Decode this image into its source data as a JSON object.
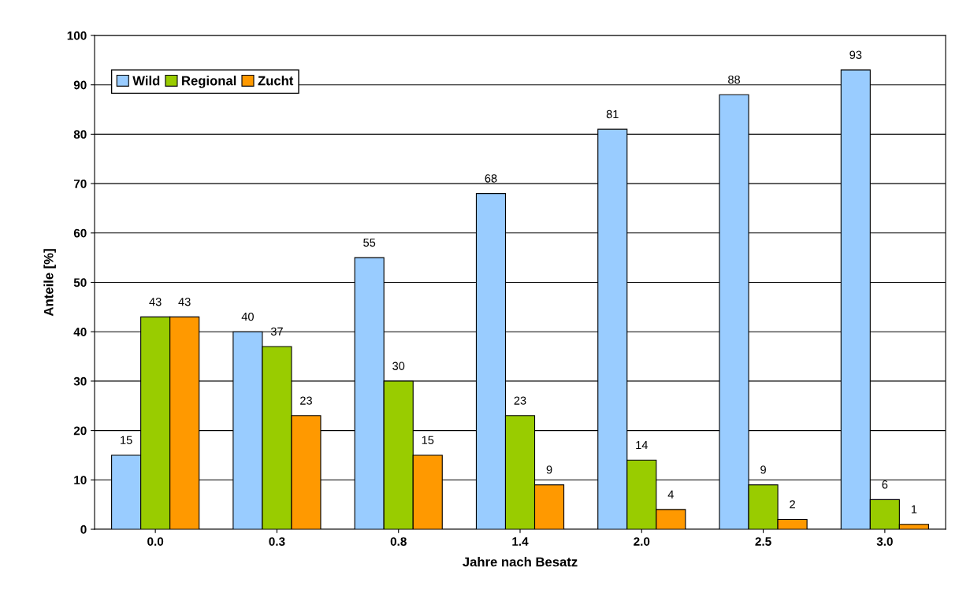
{
  "chart_data": {
    "type": "bar",
    "xlabel": "Jahre nach Besatz",
    "ylabel": "Anteile [%]",
    "categories": [
      "0.0",
      "0.3",
      "0.8",
      "1.4",
      "2.0",
      "2.5",
      "3.0"
    ],
    "series": [
      {
        "name": "Wild",
        "color": "#99ccff",
        "values": [
          15,
          40,
          55,
          68,
          81,
          88,
          93
        ]
      },
      {
        "name": "Regional",
        "color": "#99cc00",
        "values": [
          43,
          37,
          30,
          23,
          14,
          9,
          6
        ]
      },
      {
        "name": "Zucht",
        "color": "#ff9900",
        "values": [
          43,
          23,
          15,
          9,
          4,
          2,
          1
        ]
      }
    ],
    "ylim": [
      0,
      100
    ],
    "yticks": [
      0,
      10,
      20,
      30,
      40,
      50,
      60,
      70,
      80,
      90,
      100
    ],
    "grid": "y",
    "legend": "top left",
    "data_labels": true
  }
}
